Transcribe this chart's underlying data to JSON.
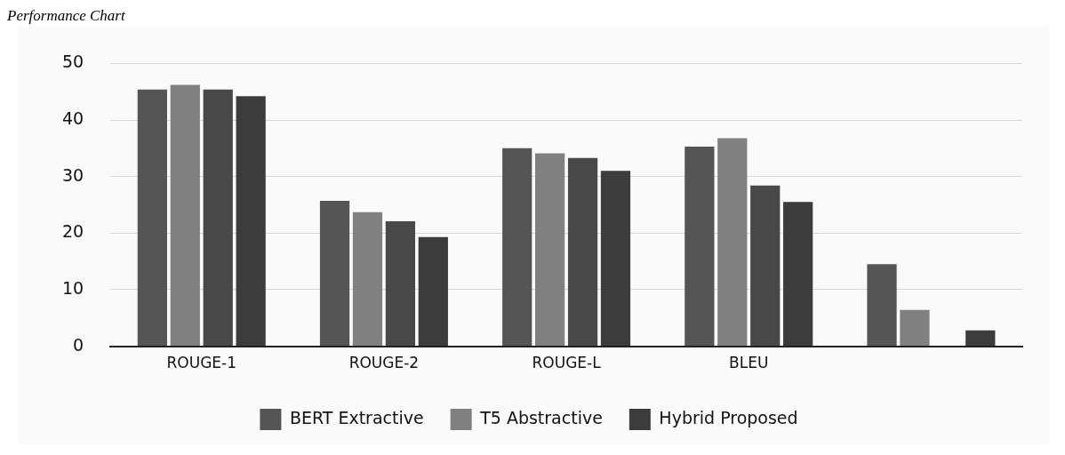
{
  "chart_data": {
    "type": "bar",
    "title": "Performance Chart",
    "categories": [
      "ROUGE-1",
      "ROUGE-2",
      "ROUGE-L",
      "BLEU",
      null
    ],
    "series": [
      {
        "name": "BERT Extractive",
        "color": "#555555",
        "values": [
          45.4,
          25.7,
          35.0,
          35.3,
          14.5
        ]
      },
      {
        "name": "T5 Abstractive",
        "color": "#808080",
        "values": [
          46.2,
          23.7,
          34.1,
          36.8,
          6.4
        ]
      },
      {
        "color": "#484848",
        "values": [
          45.4,
          22.1,
          33.3,
          28.4,
          null
        ]
      },
      {
        "name": "Hybrid Proposed",
        "color": "#3c3c3c",
        "values": [
          44.2,
          19.3,
          31.0,
          25.5,
          2.8
        ]
      }
    ],
    "ylim": [
      0,
      50
    ],
    "yticks": [
      0,
      10,
      20,
      30,
      40,
      50
    ],
    "grid": "y",
    "legend": "bottom"
  }
}
